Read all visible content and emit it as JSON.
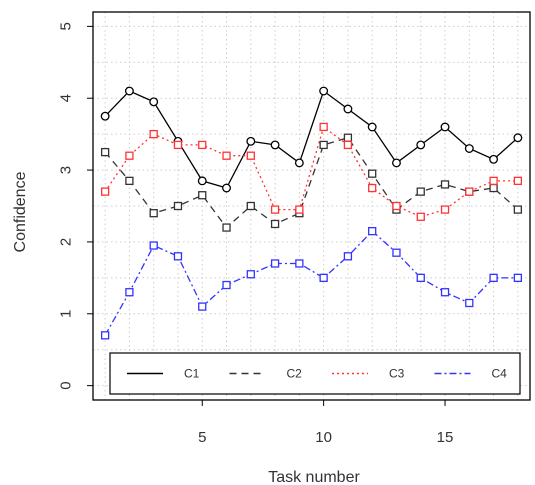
{
  "chart_data": {
    "type": "line",
    "title": "",
    "xlabel": "Task number",
    "ylabel": "Confidence",
    "xlim": [
      0.5,
      18.5
    ],
    "ylim": [
      -0.2,
      5.2
    ],
    "xticks": [
      5,
      10,
      15
    ],
    "yticks": [
      0,
      1,
      2,
      3,
      4,
      5
    ],
    "grid": true,
    "legend_position": "bottom",
    "x": [
      1,
      2,
      3,
      4,
      5,
      6,
      7,
      8,
      9,
      10,
      11,
      12,
      13,
      14,
      15,
      16,
      17,
      18
    ],
    "series": [
      {
        "name": "C1",
        "color": "#000000",
        "line_style": "solid",
        "marker": "circle",
        "values": [
          3.75,
          4.1,
          3.95,
          3.4,
          2.85,
          2.75,
          3.4,
          3.35,
          3.1,
          4.1,
          3.85,
          3.6,
          3.1,
          3.35,
          3.6,
          3.3,
          3.15,
          3.45
        ]
      },
      {
        "name": "C2",
        "color": "#333333",
        "line_style": "dashed",
        "marker": "square",
        "values": [
          3.25,
          2.85,
          2.4,
          2.5,
          2.65,
          2.2,
          2.5,
          2.25,
          2.4,
          3.35,
          3.45,
          2.95,
          2.45,
          2.7,
          2.8,
          2.7,
          2.75,
          2.45
        ]
      },
      {
        "name": "C3",
        "color": "#ff3333",
        "line_style": "dotted",
        "marker": "square",
        "values": [
          2.7,
          3.2,
          3.5,
          3.35,
          3.35,
          3.2,
          3.2,
          2.45,
          2.45,
          3.6,
          3.35,
          2.75,
          2.5,
          2.35,
          2.45,
          2.7,
          2.85,
          2.85
        ]
      },
      {
        "name": "C4",
        "color": "#3333ff",
        "line_style": "dashdot",
        "marker": "square",
        "values": [
          0.7,
          1.3,
          1.95,
          1.8,
          1.1,
          1.4,
          1.55,
          1.7,
          1.7,
          1.5,
          1.8,
          2.15,
          1.85,
          1.5,
          1.3,
          1.15,
          1.5,
          1.5
        ]
      }
    ]
  }
}
